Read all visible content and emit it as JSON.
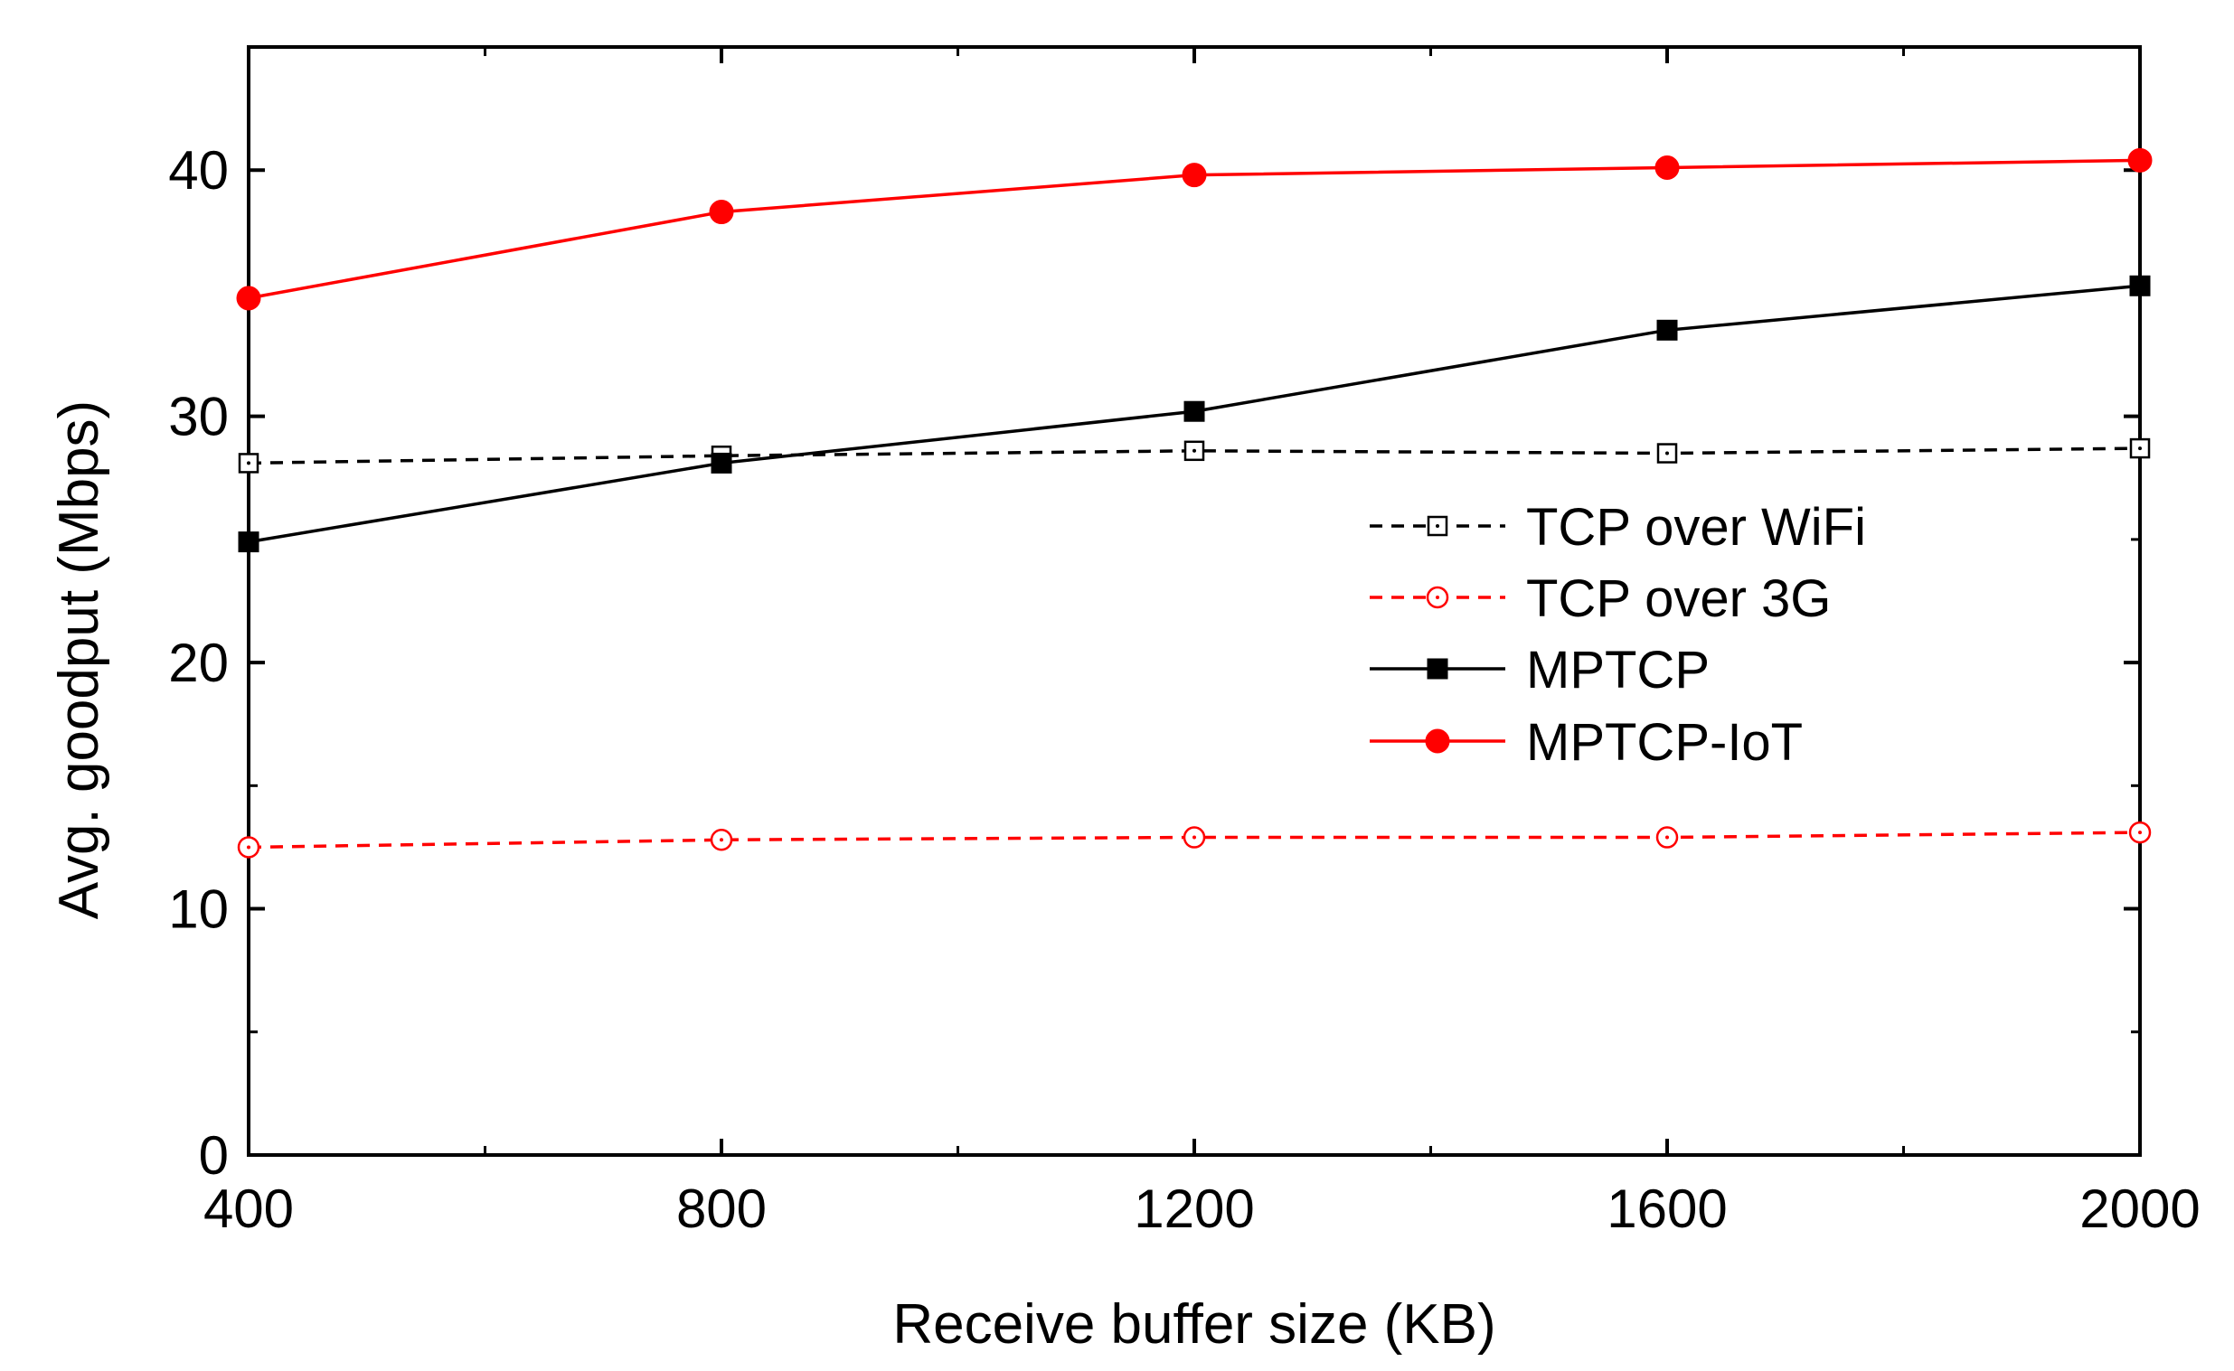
{
  "chart_data": {
    "type": "line",
    "xlabel": "Receive buffer size (KB)",
    "ylabel": "Avg. goodput (Mbps)",
    "x": [
      400,
      800,
      1200,
      1600,
      2000
    ],
    "xlim": [
      400,
      2000
    ],
    "ylim": [
      0,
      45
    ],
    "xticks": [
      "400",
      "800",
      "1200",
      "1600",
      "2000"
    ],
    "yticks": [
      "0",
      "10",
      "20",
      "30",
      "40"
    ],
    "grid": false,
    "legend_position": "right",
    "series": [
      {
        "name": "TCP over WiFi",
        "values": [
          28.1,
          28.4,
          28.6,
          28.5,
          28.7
        ],
        "color": "#000000",
        "line": "dashed",
        "marker": "open-square"
      },
      {
        "name": "TCP over 3G",
        "values": [
          12.5,
          12.8,
          12.9,
          12.9,
          13.1
        ],
        "color": "#ff0000",
        "line": "dashed",
        "marker": "open-circle"
      },
      {
        "name": "MPTCP",
        "values": [
          24.9,
          28.1,
          30.2,
          33.5,
          35.3
        ],
        "color": "#000000",
        "line": "solid",
        "marker": "filled-square"
      },
      {
        "name": "MPTCP-IoT",
        "values": [
          34.8,
          38.3,
          39.8,
          40.1,
          40.4
        ],
        "color": "#ff0000",
        "line": "solid",
        "marker": "filled-circle"
      }
    ]
  }
}
